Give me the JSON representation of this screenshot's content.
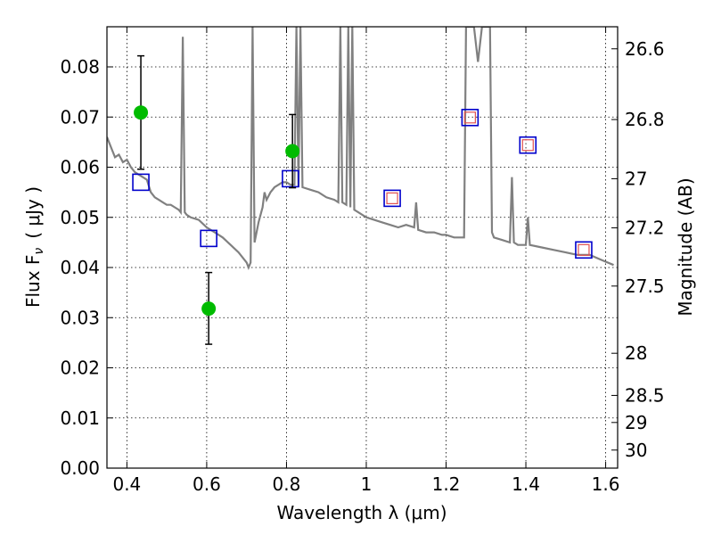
{
  "chart_data": {
    "type": "scatter",
    "xlabel": "Wavelength  λ (μm)",
    "ylabel_left": "Flux  F",
    "ylabel_left_sub": "ν",
    "ylabel_left_unit": "( μJy )",
    "ylabel_right": "Magnitude (AB)",
    "xlim": [
      0.35,
      1.63
    ],
    "ylim": [
      0.0,
      0.088
    ],
    "grid": true,
    "x_ticks": [
      {
        "value": 0.4,
        "label": "0.4"
      },
      {
        "value": 0.6,
        "label": "0.6"
      },
      {
        "value": 0.8,
        "label": "0.8"
      },
      {
        "value": 1.0,
        "label": "1"
      },
      {
        "value": 1.2,
        "label": "1.2"
      },
      {
        "value": 1.4,
        "label": "1.4"
      },
      {
        "value": 1.6,
        "label": "1.6"
      }
    ],
    "y_ticks": [
      {
        "value": 0.0,
        "label": "0.00"
      },
      {
        "value": 0.01,
        "label": "0.01"
      },
      {
        "value": 0.02,
        "label": "0.02"
      },
      {
        "value": 0.03,
        "label": "0.03"
      },
      {
        "value": 0.04,
        "label": "0.04"
      },
      {
        "value": 0.05,
        "label": "0.05"
      },
      {
        "value": 0.06,
        "label": "0.06"
      },
      {
        "value": 0.07,
        "label": "0.07"
      },
      {
        "value": 0.08,
        "label": "0.08"
      }
    ],
    "right_ticks": [
      {
        "flux": 0.0836,
        "label": "26.6"
      },
      {
        "flux": 0.0695,
        "label": "26.8"
      },
      {
        "flux": 0.0577,
        "label": "27"
      },
      {
        "flux": 0.0479,
        "label": "27.2"
      },
      {
        "flux": 0.0363,
        "label": "27.5"
      },
      {
        "flux": 0.0229,
        "label": "28"
      },
      {
        "flux": 0.0145,
        "label": "28.5"
      },
      {
        "flux": 0.0091,
        "label": "29"
      },
      {
        "flux": 0.0036,
        "label": "30"
      }
    ],
    "series": [
      {
        "kind": "model_spectrum",
        "color": "#808080",
        "points": [
          [
            0.35,
            0.066
          ],
          [
            0.36,
            0.064
          ],
          [
            0.37,
            0.062
          ],
          [
            0.38,
            0.0625
          ],
          [
            0.39,
            0.061
          ],
          [
            0.4,
            0.0615
          ],
          [
            0.41,
            0.06
          ],
          [
            0.42,
            0.059
          ],
          [
            0.43,
            0.0585
          ],
          [
            0.44,
            0.058
          ],
          [
            0.45,
            0.0575
          ],
          [
            0.46,
            0.055
          ],
          [
            0.47,
            0.054
          ],
          [
            0.48,
            0.0535
          ],
          [
            0.49,
            0.053
          ],
          [
            0.5,
            0.0525
          ],
          [
            0.51,
            0.0525
          ],
          [
            0.52,
            0.052
          ],
          [
            0.53,
            0.0515
          ],
          [
            0.535,
            0.051
          ],
          [
            0.54,
            0.086
          ],
          [
            0.545,
            0.051
          ],
          [
            0.55,
            0.0505
          ],
          [
            0.56,
            0.05
          ],
          [
            0.58,
            0.0495
          ],
          [
            0.6,
            0.048
          ],
          [
            0.62,
            0.047
          ],
          [
            0.64,
            0.046
          ],
          [
            0.66,
            0.0445
          ],
          [
            0.68,
            0.043
          ],
          [
            0.7,
            0.041
          ],
          [
            0.705,
            0.04
          ],
          [
            0.71,
            0.041
          ],
          [
            0.715,
            0.088
          ],
          [
            0.72,
            0.045
          ],
          [
            0.73,
            0.049
          ],
          [
            0.74,
            0.052
          ],
          [
            0.745,
            0.055
          ],
          [
            0.75,
            0.0535
          ],
          [
            0.76,
            0.055
          ],
          [
            0.77,
            0.056
          ],
          [
            0.78,
            0.0565
          ],
          [
            0.79,
            0.057
          ],
          [
            0.8,
            0.057
          ],
          [
            0.81,
            0.0565
          ],
          [
            0.82,
            0.0565
          ],
          [
            0.825,
            0.088
          ],
          [
            0.83,
            0.056
          ],
          [
            0.835,
            0.088
          ],
          [
            0.84,
            0.056
          ],
          [
            0.86,
            0.0555
          ],
          [
            0.88,
            0.055
          ],
          [
            0.9,
            0.054
          ],
          [
            0.92,
            0.0535
          ],
          [
            0.93,
            0.053
          ],
          [
            0.935,
            0.088
          ],
          [
            0.94,
            0.053
          ],
          [
            0.95,
            0.0525
          ],
          [
            0.955,
            0.088
          ],
          [
            0.96,
            0.052
          ],
          [
            0.965,
            0.088
          ],
          [
            0.97,
            0.0515
          ],
          [
            0.98,
            0.051
          ],
          [
            1.0,
            0.05
          ],
          [
            1.02,
            0.0495
          ],
          [
            1.04,
            0.049
          ],
          [
            1.06,
            0.0485
          ],
          [
            1.08,
            0.048
          ],
          [
            1.1,
            0.0485
          ],
          [
            1.12,
            0.048
          ],
          [
            1.125,
            0.053
          ],
          [
            1.13,
            0.0475
          ],
          [
            1.15,
            0.047
          ],
          [
            1.17,
            0.047
          ],
          [
            1.19,
            0.0465
          ],
          [
            1.2,
            0.0465
          ],
          [
            1.22,
            0.046
          ],
          [
            1.24,
            0.046
          ],
          [
            1.245,
            0.046
          ],
          [
            1.25,
            0.088
          ],
          [
            1.255,
            0.088
          ],
          [
            1.26,
            0.088
          ],
          [
            1.27,
            0.088
          ],
          [
            1.28,
            0.081
          ],
          [
            1.29,
            0.088
          ],
          [
            1.3,
            0.088
          ],
          [
            1.31,
            0.088
          ],
          [
            1.315,
            0.047
          ],
          [
            1.32,
            0.046
          ],
          [
            1.34,
            0.0455
          ],
          [
            1.36,
            0.045
          ],
          [
            1.365,
            0.058
          ],
          [
            1.37,
            0.045
          ],
          [
            1.38,
            0.0445
          ],
          [
            1.4,
            0.0445
          ],
          [
            1.405,
            0.05
          ],
          [
            1.41,
            0.0445
          ],
          [
            1.44,
            0.044
          ],
          [
            1.47,
            0.0435
          ],
          [
            1.5,
            0.043
          ],
          [
            1.53,
            0.0425
          ],
          [
            1.56,
            0.0425
          ],
          [
            1.59,
            0.0415
          ],
          [
            1.62,
            0.0405
          ]
        ]
      },
      {
        "kind": "model_photometry",
        "marker": "open_square",
        "color": "#0000cc",
        "points": [
          [
            0.435,
            0.057
          ],
          [
            0.605,
            0.0458
          ],
          [
            0.81,
            0.0577
          ],
          [
            1.065,
            0.0538
          ],
          [
            1.26,
            0.0699
          ],
          [
            1.405,
            0.0644
          ],
          [
            1.545,
            0.0435
          ]
        ]
      },
      {
        "kind": "inner_squares",
        "marker": "open_square_small",
        "color": "#e05050",
        "points": [
          [
            1.065,
            0.0538
          ],
          [
            1.26,
            0.0699
          ],
          [
            1.405,
            0.0644
          ],
          [
            1.545,
            0.0435
          ]
        ]
      },
      {
        "kind": "observed_photometry",
        "marker": "filled_circle",
        "color": "#00bb00",
        "points": [
          {
            "x": 0.435,
            "y": 0.0709,
            "err_low": 0.0596,
            "err_high": 0.0822
          },
          {
            "x": 0.605,
            "y": 0.0318,
            "err_low": 0.0247,
            "err_high": 0.039
          },
          {
            "x": 0.815,
            "y": 0.0632,
            "err_low": 0.0559,
            "err_high": 0.0705
          }
        ]
      }
    ]
  }
}
